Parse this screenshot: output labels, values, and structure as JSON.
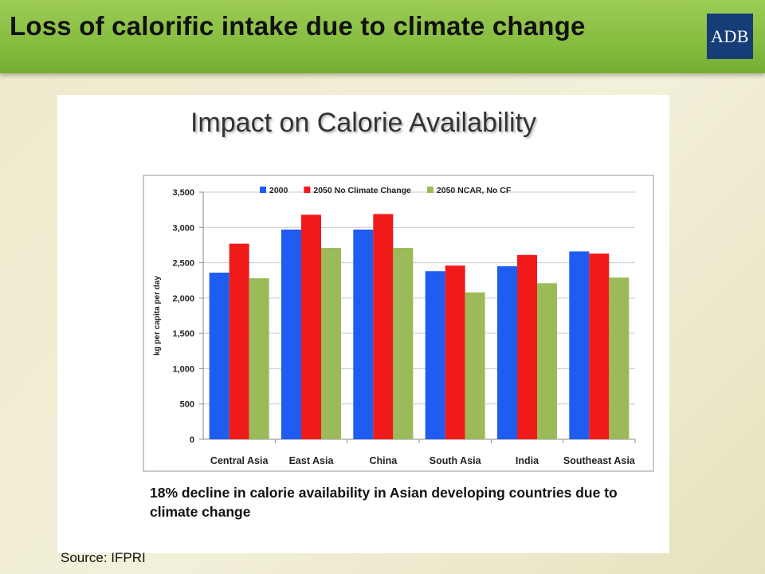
{
  "header": {
    "title": "Loss of calorific intake due to climate change"
  },
  "logo": {
    "text": "ADB"
  },
  "footer": {
    "source": "Source: IFPRI"
  },
  "note": {
    "text": "18% decline in calorie availability in Asian developing countries due to climate change"
  },
  "chart_data": {
    "type": "bar",
    "title": "Impact on Calorie Availability",
    "xlabel": "",
    "ylabel": "kg per capita per day",
    "ylim": [
      0,
      3500
    ],
    "yticks": [
      0,
      500,
      1000,
      1500,
      2000,
      2500,
      3000,
      3500
    ],
    "ytick_labels": [
      "0",
      "500",
      "1,000",
      "1,500",
      "2,000",
      "2,500",
      "3,000",
      "3,500"
    ],
    "categories": [
      "Central Asia",
      "East Asia",
      "China",
      "South Asia",
      "India",
      "Southeast Asia"
    ],
    "grid": true,
    "legend_position": "top",
    "series": [
      {
        "name": "2000",
        "color": "#1f5cf2",
        "values": [
          2360,
          2970,
          2970,
          2380,
          2450,
          2660
        ]
      },
      {
        "name": "2050 No Climate Change",
        "color": "#f11a1a",
        "values": [
          2770,
          3180,
          3190,
          2460,
          2610,
          2630
        ]
      },
      {
        "name": "2050 NCAR, No CF",
        "color": "#9bbb59",
        "values": [
          2280,
          2710,
          2710,
          2080,
          2210,
          2290
        ]
      }
    ]
  }
}
